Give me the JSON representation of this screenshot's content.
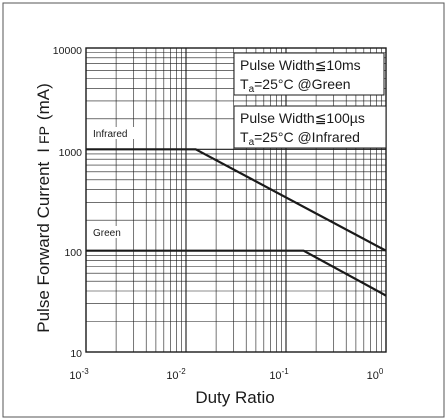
{
  "chart_data": {
    "type": "line",
    "x_scale": "log",
    "y_scale": "log",
    "xlim": [
      0.001,
      1
    ],
    "ylim": [
      10,
      10000
    ],
    "xlabel": "Duty Ratio",
    "ylabel_main": "Pulse Forward Current",
    "ylabel_symbol": "I",
    "ylabel_sub": "FP",
    "ylabel_unit": "(mA)",
    "x_ticks": [
      {
        "base": "10",
        "exp": "-3",
        "value": 0.001
      },
      {
        "base": "10",
        "exp": "-2",
        "value": 0.01
      },
      {
        "base": "10",
        "exp": "-1",
        "value": 0.1
      },
      {
        "base": "10",
        "exp": "0",
        "value": 1
      }
    ],
    "y_ticks": [
      {
        "label": "10",
        "value": 10
      },
      {
        "label": "100",
        "value": 100
      },
      {
        "label": "1000",
        "value": 1000
      },
      {
        "label": "10000",
        "value": 10000
      }
    ],
    "grid": true,
    "series": [
      {
        "name": "Infrared",
        "color": "#1a1a1a",
        "x": [
          0.001,
          0.0125,
          1
        ],
        "y": [
          1000,
          1000,
          100
        ]
      },
      {
        "name": "Green",
        "color": "#1a1a1a",
        "x": [
          0.001,
          0.15,
          1
        ],
        "y": [
          100,
          100,
          36
        ]
      }
    ],
    "annotations": [
      {
        "id": "green",
        "line1": "Pulse Width≦10ms",
        "line2_T": "T",
        "line2_sub": "a",
        "line2_rest": "=25°C   @Green"
      },
      {
        "id": "infrared",
        "line1": "Pulse Width≦100µs",
        "line2_T": "T",
        "line2_sub": "a",
        "line2_rest": "=25°C   @Infrared"
      }
    ]
  }
}
